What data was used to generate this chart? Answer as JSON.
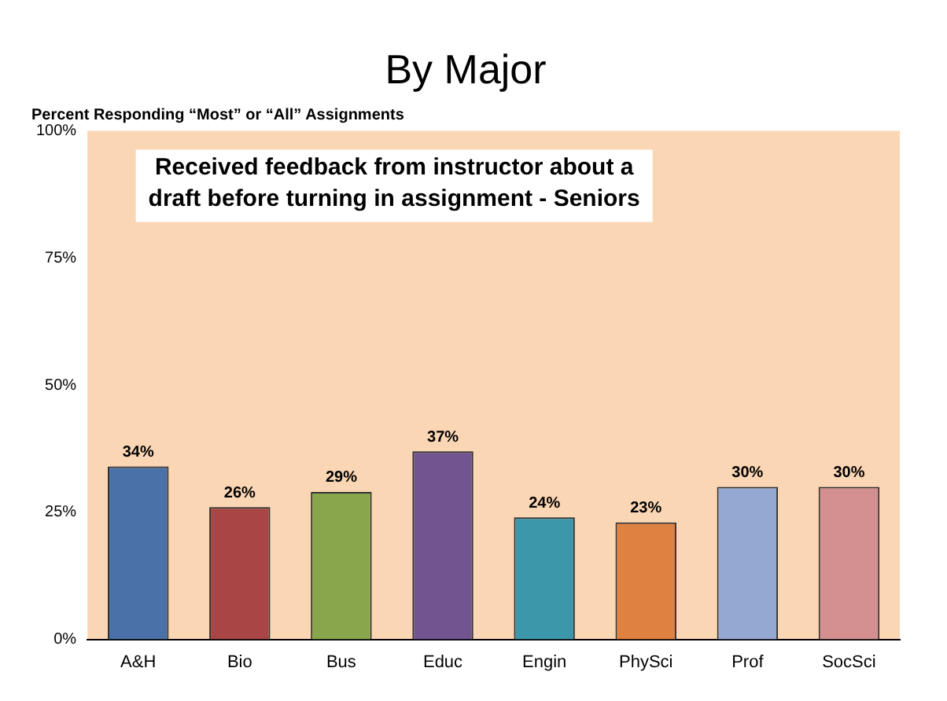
{
  "chart_data": {
    "type": "bar",
    "title": "By Major",
    "subtitle": "Percent Responding “Most” or “All” Assignments",
    "annotations": [
      "Received feedback from instructor about a draft before turning in assignment - Seniors"
    ],
    "categories": [
      "A&H",
      "Bio",
      "Bus",
      "Educ",
      "Engin",
      "PhySci",
      "Prof",
      "SocSci"
    ],
    "values": [
      34,
      26,
      29,
      37,
      24,
      23,
      30,
      30
    ],
    "value_labels": [
      "34%",
      "26%",
      "29%",
      "37%",
      "24%",
      "23%",
      "30%",
      "30%"
    ],
    "colors": [
      "#4a72a8",
      "#a84646",
      "#8aa64c",
      "#725590",
      "#3d97ab",
      "#df8140",
      "#94a8d2",
      "#d49090"
    ],
    "ylim": [
      0,
      100
    ],
    "yticks": [
      {
        "value": 0,
        "label": "0%"
      },
      {
        "value": 25,
        "label": "25%"
      },
      {
        "value": 50,
        "label": "50%"
      },
      {
        "value": 75,
        "label": "75%"
      },
      {
        "value": 100,
        "label": "100%"
      }
    ],
    "grid": false,
    "legend": false
  }
}
